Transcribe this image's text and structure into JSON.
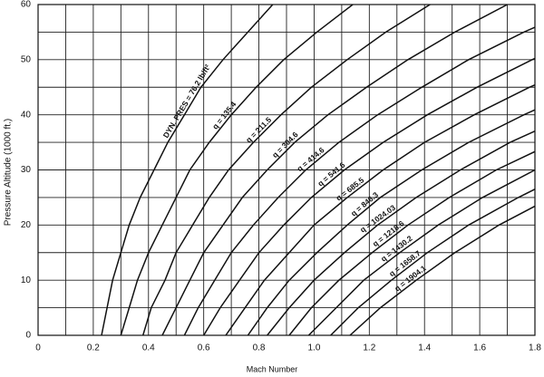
{
  "chart_data": {
    "type": "line",
    "x_label": "Mach Number",
    "y_label": "Pressure Altitude (1000 ft.)",
    "xlim": [
      0,
      1.8
    ],
    "ylim": [
      0,
      60
    ],
    "xticks": [
      0,
      0.2,
      0.4,
      0.6,
      0.8,
      {
        "value": 1,
        "label": "1.0"
      },
      1.2,
      1.4,
      1.6,
      1.8
    ],
    "yticks": [
      0,
      10,
      20,
      30,
      40,
      50,
      60
    ],
    "grid": true,
    "series": [
      {
        "name": "DYN. PRES = 76.2 lb/ft²",
        "color": "#111",
        "x": [
          0.23,
          0.25,
          0.27,
          0.3,
          0.33,
          0.37,
          0.42,
          0.47,
          0.53,
          0.59,
          0.67,
          0.76,
          0.85
        ],
        "values": [
          0,
          5,
          10,
          15,
          20,
          25,
          30,
          35,
          40,
          45,
          50,
          55,
          60
        ]
      },
      {
        "name": "q = 135.4",
        "color": "#111",
        "x": [
          0.3,
          0.33,
          0.36,
          0.4,
          0.45,
          0.5,
          0.55,
          0.62,
          0.7,
          0.79,
          0.89,
          1.01,
          1.14
        ],
        "values": [
          0,
          5,
          10,
          15,
          20,
          25,
          30,
          35,
          40,
          45,
          50,
          55,
          60
        ]
      },
      {
        "name": "q = 211.5",
        "color": "#111",
        "x": [
          0.38,
          0.41,
          0.46,
          0.5,
          0.56,
          0.62,
          0.69,
          0.78,
          0.88,
          0.99,
          1.12,
          1.26,
          1.42
        ],
        "values": [
          0,
          5,
          10,
          15,
          20,
          25,
          30,
          35,
          40,
          45,
          50,
          55,
          60
        ]
      },
      {
        "name": "q = 304.6",
        "color": "#111",
        "x": [
          0.45,
          0.5,
          0.55,
          0.6,
          0.67,
          0.74,
          0.83,
          0.93,
          1.05,
          1.19,
          1.34,
          1.51,
          1.7
        ],
        "values": [
          0,
          5,
          10,
          15,
          20,
          25,
          30,
          35,
          40,
          45,
          50,
          55,
          60
        ]
      },
      {
        "name": "q = 414.6",
        "color": "#111",
        "x": [
          0.53,
          0.58,
          0.64,
          0.7,
          0.78,
          0.87,
          0.97,
          1.09,
          1.23,
          1.39,
          1.56,
          1.76,
          1.99
        ],
        "values": [
          0,
          5,
          10,
          15,
          20,
          25,
          30,
          35,
          40,
          45,
          50,
          55,
          60
        ]
      },
      {
        "name": "q = 541.6",
        "color": "#111",
        "x": [
          0.6,
          0.66,
          0.73,
          0.8,
          0.89,
          0.99,
          1.11,
          1.25,
          1.41,
          1.59,
          1.79,
          2.02
        ],
        "values": [
          0,
          5,
          10,
          15,
          20,
          25,
          30,
          35,
          40,
          45,
          50,
          55
        ]
      },
      {
        "name": "q = 685.5",
        "color": "#111",
        "x": [
          0.68,
          0.75,
          0.82,
          0.91,
          1.0,
          1.12,
          1.25,
          1.4,
          1.58,
          1.78,
          2.01
        ],
        "values": [
          0,
          5,
          10,
          15,
          20,
          25,
          30,
          35,
          40,
          45,
          50
        ]
      },
      {
        "name": "q = 846.3",
        "color": "#111",
        "x": [
          0.76,
          0.83,
          0.91,
          1.01,
          1.12,
          1.24,
          1.39,
          1.56,
          1.76,
          1.98
        ],
        "values": [
          0,
          5,
          10,
          15,
          20,
          25,
          30,
          35,
          40,
          45
        ]
      },
      {
        "name": "q = 1024.03",
        "color": "#111",
        "x": [
          0.83,
          0.91,
          1.0,
          1.11,
          1.23,
          1.37,
          1.53,
          1.71,
          1.93
        ],
        "values": [
          0,
          5,
          10,
          15,
          20,
          25,
          30,
          35,
          40
        ]
      },
      {
        "name": "q = 1218.6",
        "color": "#111",
        "x": [
          0.91,
          0.99,
          1.09,
          1.21,
          1.34,
          1.49,
          1.66,
          1.87
        ],
        "values": [
          0,
          5,
          10,
          15,
          20,
          25,
          30,
          35
        ]
      },
      {
        "name": "q = 1430.2",
        "color": "#111",
        "x": [
          0.98,
          1.08,
          1.18,
          1.31,
          1.45,
          1.61,
          1.8,
          2.03
        ],
        "values": [
          0,
          5,
          10,
          15,
          20,
          25,
          30,
          35
        ]
      },
      {
        "name": "q = 1658.7",
        "color": "#111",
        "x": [
          1.06,
          1.16,
          1.28,
          1.41,
          1.56,
          1.74,
          1.94
        ],
        "values": [
          0,
          5,
          10,
          15,
          20,
          25,
          30
        ]
      },
      {
        "name": "q = 1904.1",
        "color": "#111",
        "x": [
          1.13,
          1.24,
          1.37,
          1.51,
          1.67,
          1.86
        ],
        "values": [
          0,
          5,
          10,
          15,
          20,
          25
        ]
      }
    ]
  }
}
